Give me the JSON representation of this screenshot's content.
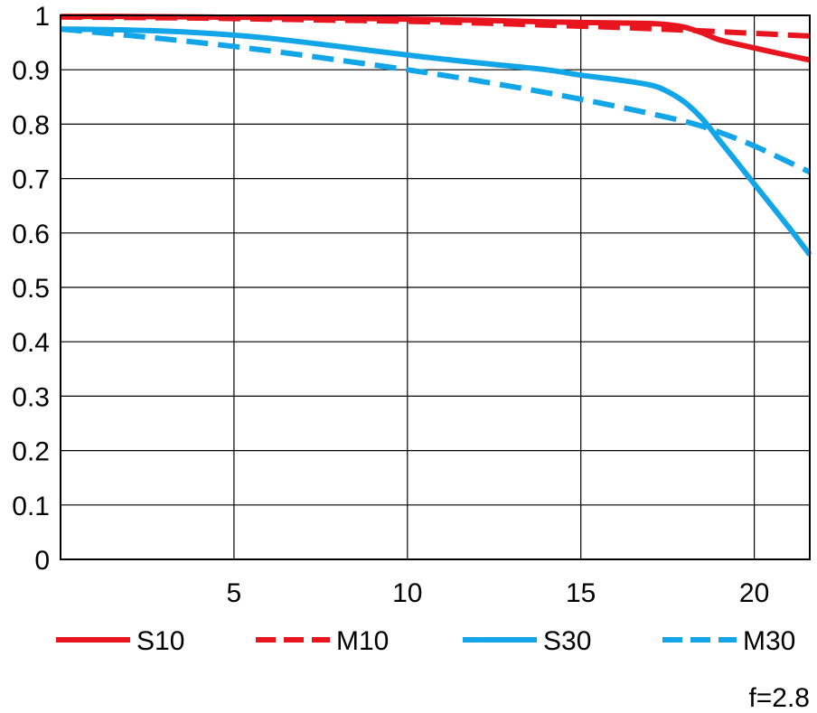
{
  "chart_data": {
    "type": "line",
    "xlim": [
      0,
      21.6
    ],
    "ylim": [
      0,
      1
    ],
    "x_ticks": [
      "5",
      "10",
      "15",
      "20"
    ],
    "x_tick_values": [
      5,
      10,
      15,
      20
    ],
    "y_ticks": [
      "0",
      "0.1",
      "0.2",
      "0.3",
      "0.4",
      "0.5",
      "0.6",
      "0.7",
      "0.8",
      "0.9",
      "1"
    ],
    "y_tick_values": [
      0,
      0.1,
      0.2,
      0.3,
      0.4,
      0.5,
      0.6,
      0.7,
      0.8,
      0.9,
      1.0
    ],
    "grid": true,
    "legend_position": "bottom",
    "annotation": "f=2.8",
    "series": [
      {
        "name": "S10",
        "color": "#e8141e",
        "dash": "solid",
        "x": [
          0,
          2,
          4,
          6,
          8,
          10,
          12,
          14,
          16,
          17,
          17.5,
          18,
          18.5,
          19,
          20,
          21,
          21.6
        ],
        "y": [
          0.998,
          0.998,
          0.997,
          0.996,
          0.995,
          0.993,
          0.991,
          0.988,
          0.986,
          0.985,
          0.983,
          0.978,
          0.968,
          0.955,
          0.94,
          0.926,
          0.918
        ]
      },
      {
        "name": "M10",
        "color": "#e8141e",
        "dash": "dashed",
        "x": [
          0,
          2,
          4,
          6,
          8,
          10,
          12,
          14,
          16,
          18,
          20,
          21.6
        ],
        "y": [
          0.997,
          0.996,
          0.995,
          0.993,
          0.991,
          0.989,
          0.986,
          0.982,
          0.978,
          0.973,
          0.967,
          0.962
        ]
      },
      {
        "name": "S30",
        "color": "#12a5e8",
        "dash": "solid",
        "x": [
          0,
          2,
          4,
          6,
          8,
          10,
          12,
          14,
          15,
          16,
          17,
          17.5,
          18,
          18.5,
          19,
          19.5,
          20,
          21,
          21.6
        ],
        "y": [
          0.975,
          0.973,
          0.968,
          0.958,
          0.943,
          0.927,
          0.913,
          0.9,
          0.89,
          0.882,
          0.872,
          0.86,
          0.84,
          0.81,
          0.77,
          0.73,
          0.69,
          0.61,
          0.56
        ]
      },
      {
        "name": "M30",
        "color": "#12a5e8",
        "dash": "dashed",
        "x": [
          0,
          2,
          4,
          6,
          8,
          10,
          12,
          14,
          16,
          18,
          19,
          20,
          21,
          21.6
        ],
        "y": [
          0.975,
          0.963,
          0.95,
          0.935,
          0.918,
          0.9,
          0.88,
          0.858,
          0.833,
          0.805,
          0.785,
          0.76,
          0.73,
          0.712
        ]
      }
    ]
  }
}
